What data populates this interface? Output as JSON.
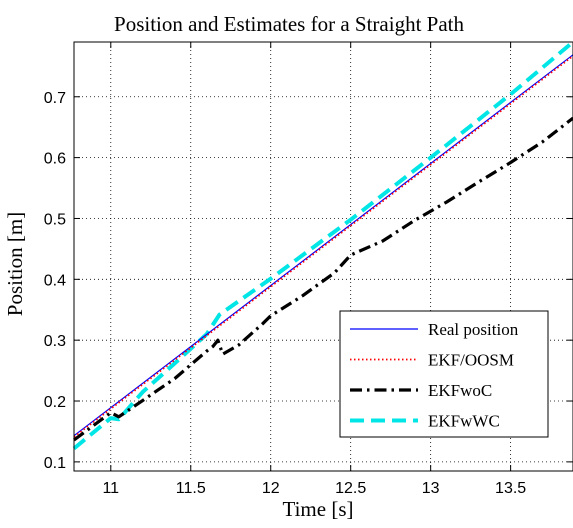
{
  "chart_data": {
    "type": "line",
    "title": "Position and Estimates for a Straight Path",
    "xlabel": "Time [s]",
    "ylabel": "Position [m]",
    "xlim": [
      10.77,
      13.89
    ],
    "ylim": [
      0.085,
      0.79
    ],
    "xticks": [
      11,
      11.5,
      12,
      12.5,
      13,
      13.5
    ],
    "xtick_labels": [
      "11",
      "11.5",
      "12",
      "12.5",
      "13",
      "13.5"
    ],
    "yticks": [
      0.1,
      0.2,
      0.3,
      0.4,
      0.5,
      0.6,
      0.7
    ],
    "ytick_labels": [
      "0.1",
      "0.2",
      "0.3",
      "0.4",
      "0.5",
      "0.6",
      "0.7"
    ],
    "grid": true,
    "legend_position": "bottom-right",
    "series": [
      {
        "name": "Real position",
        "color": "#0000ff",
        "style": "solid",
        "x": [
          10.77,
          13.89
        ],
        "y": [
          0.143,
          0.769
        ]
      },
      {
        "name": "EKF/OOSM",
        "color": "#ff0000",
        "style": "dotted",
        "x": [
          10.77,
          13.89
        ],
        "y": [
          0.141,
          0.767
        ]
      },
      {
        "name": "EKFwoC",
        "color": "#000000",
        "style": "dashdot",
        "x": [
          10.77,
          11.0,
          11.05,
          11.2,
          11.4,
          11.6,
          11.64,
          11.67,
          11.7,
          11.8,
          11.95,
          12.0,
          12.2,
          12.4,
          12.5,
          12.7,
          12.9,
          13.1,
          13.3,
          13.5,
          13.7,
          13.89
        ],
        "y": [
          0.136,
          0.181,
          0.174,
          0.201,
          0.237,
          0.282,
          0.29,
          0.3,
          0.277,
          0.292,
          0.327,
          0.34,
          0.373,
          0.411,
          0.44,
          0.463,
          0.497,
          0.527,
          0.56,
          0.592,
          0.626,
          0.665
        ]
      },
      {
        "name": "EKFwWC",
        "color": "#00e5e5",
        "style": "dashed",
        "x": [
          10.77,
          11.0,
          11.05,
          11.2,
          11.4,
          11.6,
          11.68,
          12.0,
          12.5,
          13.0,
          13.5,
          13.89
        ],
        "y": [
          0.122,
          0.172,
          0.17,
          0.215,
          0.262,
          0.31,
          0.342,
          0.401,
          0.498,
          0.6,
          0.704,
          0.79
        ]
      }
    ]
  }
}
